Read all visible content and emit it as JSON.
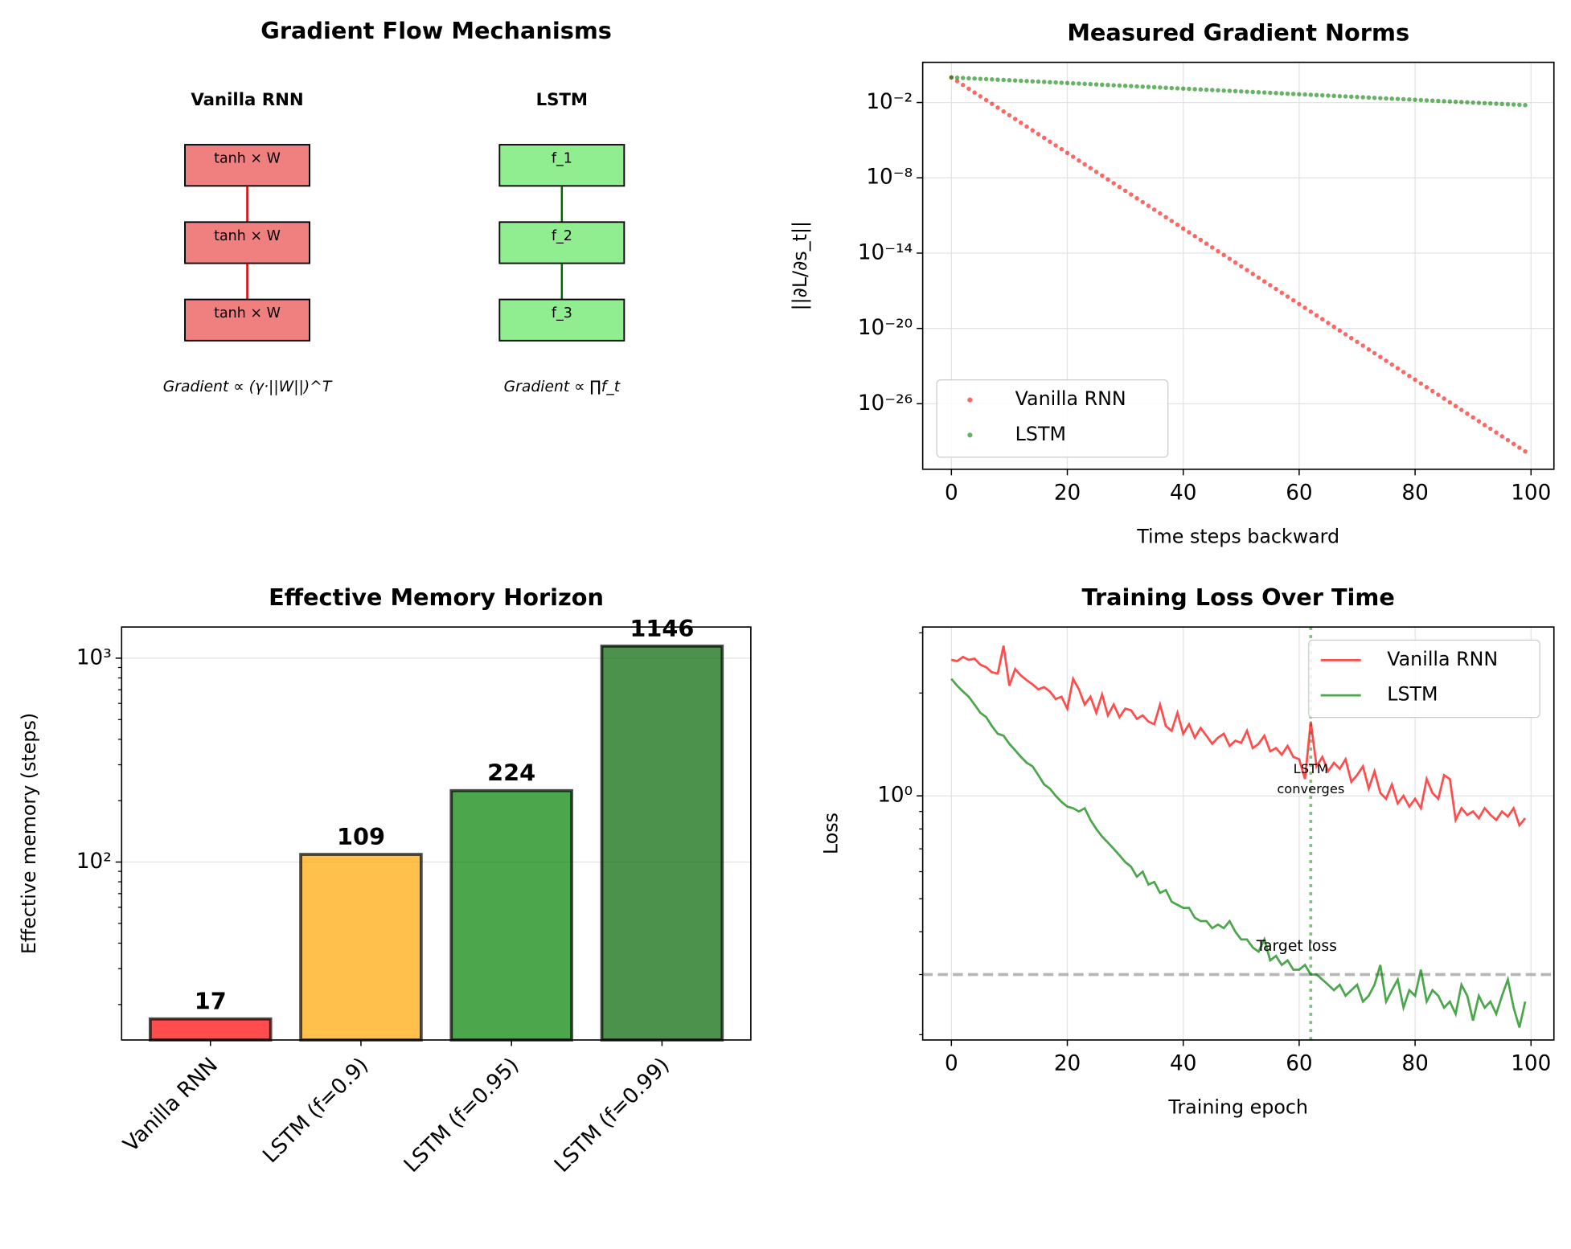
{
  "chart_data": [
    {
      "type": "diagram",
      "title": "Gradient Flow Mechanisms",
      "columns": [
        {
          "title": "Vanilla RNN",
          "blocks": [
            "tanh × W",
            "tanh × W",
            "tanh × W"
          ],
          "formula": "Gradient ∝ (γ·||W||)^T",
          "color": "#f08080",
          "link_color": "#e00000"
        },
        {
          "title": "LSTM",
          "blocks": [
            "f_1",
            "f_2",
            "f_3"
          ],
          "formula": "Gradient ∝ ∏f_t",
          "color": "#90ee90",
          "link_color": "#006400"
        }
      ]
    },
    {
      "type": "scatter",
      "title": "Measured Gradient Norms",
      "x_label": "Time steps backward",
      "y_label": "||∂L/∂s_t||",
      "x": [
        0,
        1,
        2,
        3,
        4,
        5,
        6,
        7,
        8,
        9,
        10,
        11,
        12,
        13,
        14,
        15,
        16,
        17,
        18,
        19,
        20,
        21,
        22,
        23,
        24,
        25,
        26,
        27,
        28,
        29,
        30,
        31,
        32,
        33,
        34,
        35,
        36,
        37,
        38,
        39,
        40,
        41,
        42,
        43,
        44,
        45,
        46,
        47,
        48,
        49,
        50,
        51,
        52,
        53,
        54,
        55,
        56,
        57,
        58,
        59,
        60,
        61,
        62,
        63,
        64,
        65,
        66,
        67,
        68,
        69,
        70,
        71,
        72,
        73,
        74,
        75,
        76,
        77,
        78,
        79,
        80,
        81,
        82,
        83,
        84,
        85,
        86,
        87,
        88,
        89,
        90,
        91,
        92,
        93,
        94,
        95,
        96,
        97,
        98,
        99
      ],
      "series": [
        {
          "name": "Vanilla RNN",
          "color": "#ff0000",
          "values": [
            1,
            0.5,
            0.25,
            0.125,
            0.0625,
            0.0313,
            0.0156,
            0.00781,
            0.00391,
            0.00195,
            0.000977,
            0.000488,
            0.000244,
            0.000122,
            6.1e-05,
            3.05e-05,
            1.53e-05,
            7.63e-06,
            3.81e-06,
            1.91e-06,
            9.54e-07,
            4.77e-07,
            2.38e-07,
            1.19e-07,
            5.96e-08,
            2.98e-08,
            1.49e-08,
            7.45e-09,
            3.73e-09,
            1.86e-09,
            9.31e-10,
            4.66e-10,
            2.33e-10,
            1.16e-10,
            5.82e-11,
            2.91e-11,
            1.46e-11,
            7.28e-12,
            3.64e-12,
            1.82e-12,
            9.09e-13,
            4.55e-13,
            2.27e-13,
            1.14e-13,
            5.68e-14,
            2.84e-14,
            1.42e-14,
            7.11e-15,
            3.55e-15,
            1.78e-15,
            8.88e-16,
            4.44e-16,
            2.22e-16,
            1.11e-16,
            5.55e-17,
            2.78e-17,
            1.39e-17,
            6.94e-18,
            3.47e-18,
            1.73e-18,
            8.67e-19,
            4.34e-19,
            2.17e-19,
            1.08e-19,
            5.42e-20,
            2.71e-20,
            1.36e-20,
            6.78e-21,
            3.39e-21,
            1.69e-21,
            8.47e-22,
            4.24e-22,
            2.12e-22,
            1.06e-22,
            5.29e-23,
            2.65e-23,
            1.32e-23,
            6.62e-24,
            3.31e-24,
            1.65e-24,
            8.27e-25,
            4.14e-25,
            2.07e-25,
            1.03e-25,
            5.17e-26,
            2.58e-26,
            1.29e-26,
            6.46e-27,
            3.23e-27,
            1.62e-27,
            8.08e-28,
            4.04e-28,
            2.02e-28,
            1.01e-28,
            5.05e-29,
            2.52e-29,
            1.26e-29,
            6.31e-30,
            3.16e-30,
            1.58e-30
          ]
        },
        {
          "name": "LSTM",
          "color": "#008000",
          "values": [
            1,
            0.95,
            0.9025,
            0.857,
            0.815,
            0.774,
            0.735,
            0.698,
            0.663,
            0.63,
            0.599,
            0.569,
            0.54,
            0.513,
            0.488,
            0.463,
            0.44,
            0.418,
            0.397,
            0.377,
            0.358,
            0.341,
            0.324,
            0.307,
            0.292,
            0.277,
            0.264,
            0.25,
            0.238,
            0.226,
            0.215,
            0.204,
            0.194,
            0.184,
            0.175,
            0.166,
            0.158,
            0.15,
            0.142,
            0.135,
            0.129,
            0.122,
            0.116,
            0.11,
            0.105,
            0.0994,
            0.0945,
            0.0897,
            0.0853,
            0.081,
            0.0769,
            0.0731,
            0.0694,
            0.066,
            0.0627,
            0.0595,
            0.0566,
            0.0537,
            0.051,
            0.0485,
            0.0461,
            0.0438,
            0.0416,
            0.0395,
            0.0375,
            0.0356,
            0.0339,
            0.0322,
            0.0306,
            0.029,
            0.0276,
            0.0262,
            0.0249,
            0.0236,
            0.0225,
            0.0213,
            0.0203,
            0.0193,
            0.0183,
            0.0174,
            0.0165,
            0.0157,
            0.0149,
            0.0142,
            0.0135,
            0.0128,
            0.0122,
            0.0115,
            0.011,
            0.0104,
            0.00989,
            0.0094,
            0.00893,
            0.00848,
            0.00806,
            0.00765,
            0.00727,
            0.00691,
            0.00656,
            0.00623
          ]
        }
      ],
      "xlim": [
        -4.95,
        103.95
      ],
      "ylim": [
        6e-32,
        16
      ],
      "y_log": true,
      "xticks": [
        0,
        20,
        40,
        60,
        80,
        100
      ],
      "yticks": [
        {
          "value": 0.01,
          "label": "10⁻²"
        },
        {
          "value": 1e-08,
          "label": "10⁻⁸"
        },
        {
          "value": 1e-14,
          "label": "10⁻¹⁴"
        },
        {
          "value": 1e-20,
          "label": "10⁻²⁰"
        },
        {
          "value": 1e-26,
          "label": "10⁻²⁶"
        }
      ],
      "grid": "both",
      "legend": "lower left"
    },
    {
      "type": "bar",
      "title": "Effective Memory Horizon",
      "y_label": "Effective memory (steps)",
      "categories": [
        "Vanilla RNN",
        "LSTM (f=0.9)",
        "LSTM (f=0.95)",
        "LSTM (f=0.99)"
      ],
      "values": [
        17,
        109,
        224,
        1146
      ],
      "colors": [
        "#ff0000",
        "#ffa500",
        "#008000",
        "#006400"
      ],
      "ylim": [
        13.4,
        1422
      ],
      "y_log": true,
      "yticks": [
        {
          "value": 100,
          "label": "10²"
        },
        {
          "value": 1000,
          "label": "10³"
        }
      ],
      "yminor": [
        20,
        30,
        40,
        50,
        60,
        70,
        80,
        90,
        200,
        300,
        400,
        500,
        600,
        700,
        800,
        900
      ],
      "grid": "y"
    },
    {
      "type": "line",
      "title": "Training Loss Over Time",
      "x_label": "Training epoch",
      "y_label": "Loss",
      "x": [
        0,
        1,
        2,
        3,
        4,
        5,
        6,
        7,
        8,
        9,
        10,
        11,
        12,
        13,
        14,
        15,
        16,
        17,
        18,
        19,
        20,
        21,
        22,
        23,
        24,
        25,
        26,
        27,
        28,
        29,
        30,
        31,
        32,
        33,
        34,
        35,
        36,
        37,
        38,
        39,
        40,
        41,
        42,
        43,
        44,
        45,
        46,
        47,
        48,
        49,
        50,
        51,
        52,
        53,
        54,
        55,
        56,
        57,
        58,
        59,
        60,
        61,
        62,
        63,
        64,
        65,
        66,
        67,
        68,
        69,
        70,
        71,
        72,
        73,
        74,
        75,
        76,
        77,
        78,
        79,
        80,
        81,
        82,
        83,
        84,
        85,
        86,
        87,
        88,
        89,
        90,
        91,
        92,
        93,
        94,
        95,
        96,
        97,
        98,
        99
      ],
      "series": [
        {
          "name": "Vanilla RNN",
          "color": "#ff0000",
          "values": [
            2.5,
            2.48,
            2.55,
            2.5,
            2.52,
            2.42,
            2.38,
            2.3,
            2.28,
            2.75,
            2.1,
            2.35,
            2.25,
            2.18,
            2.12,
            2.05,
            2.08,
            2.02,
            1.92,
            1.95,
            1.8,
            2.2,
            2.05,
            1.85,
            1.95,
            1.75,
            1.98,
            1.72,
            1.85,
            1.7,
            1.8,
            1.78,
            1.68,
            1.72,
            1.65,
            1.62,
            1.85,
            1.6,
            1.55,
            1.75,
            1.52,
            1.62,
            1.48,
            1.58,
            1.5,
            1.42,
            1.48,
            1.52,
            1.4,
            1.45,
            1.43,
            1.55,
            1.38,
            1.42,
            1.5,
            1.35,
            1.38,
            1.32,
            1.4,
            1.3,
            1.28,
            1.12,
            1.65,
            1.22,
            1.3,
            1.18,
            1.25,
            1.2,
            1.28,
            1.1,
            1.15,
            1.22,
            1.05,
            1.18,
            1.02,
            0.98,
            1.08,
            0.95,
            1.0,
            0.93,
            0.98,
            0.92,
            1.12,
            1.02,
            0.98,
            1.15,
            1.12,
            0.85,
            0.92,
            0.88,
            0.9,
            0.86,
            0.92,
            0.88,
            0.85,
            0.9,
            0.87,
            0.92,
            0.82,
            0.86
          ]
        },
        {
          "name": "LSTM",
          "color": "#008000",
          "values": [
            2.2,
            2.1,
            2.02,
            1.95,
            1.85,
            1.75,
            1.7,
            1.6,
            1.52,
            1.5,
            1.42,
            1.36,
            1.3,
            1.25,
            1.22,
            1.15,
            1.08,
            1.05,
            1.0,
            0.96,
            0.93,
            0.92,
            0.9,
            0.92,
            0.85,
            0.8,
            0.76,
            0.73,
            0.7,
            0.67,
            0.64,
            0.62,
            0.58,
            0.6,
            0.55,
            0.56,
            0.52,
            0.53,
            0.49,
            0.48,
            0.47,
            0.47,
            0.44,
            0.43,
            0.43,
            0.41,
            0.42,
            0.41,
            0.43,
            0.4,
            0.38,
            0.38,
            0.36,
            0.35,
            0.38,
            0.33,
            0.34,
            0.32,
            0.33,
            0.31,
            0.31,
            0.32,
            0.3,
            0.3,
            0.29,
            0.28,
            0.27,
            0.28,
            0.26,
            0.27,
            0.28,
            0.25,
            0.26,
            0.28,
            0.32,
            0.25,
            0.27,
            0.29,
            0.24,
            0.27,
            0.26,
            0.31,
            0.25,
            0.27,
            0.26,
            0.24,
            0.25,
            0.23,
            0.28,
            0.26,
            0.22,
            0.26,
            0.24,
            0.25,
            0.23,
            0.26,
            0.29,
            0.24,
            0.21,
            0.25
          ]
        }
      ],
      "xlim": [
        -4.95,
        103.95
      ],
      "ylim": [
        0.193,
        3.12
      ],
      "y_log": true,
      "xticks": [
        0,
        20,
        40,
        60,
        80,
        100
      ],
      "yticks": [
        {
          "value": 1,
          "label": "10⁰"
        }
      ],
      "yminor": [
        0.2,
        0.3,
        0.4,
        0.5,
        0.6,
        0.7,
        0.8,
        0.9,
        2,
        3
      ],
      "converge_epoch": 62,
      "converge_color": "#008000",
      "converge_label": [
        "LSTM",
        "converges"
      ],
      "target_loss": 0.3,
      "target_label": "Target loss",
      "grid": "both",
      "legend": "upper right"
    }
  ]
}
